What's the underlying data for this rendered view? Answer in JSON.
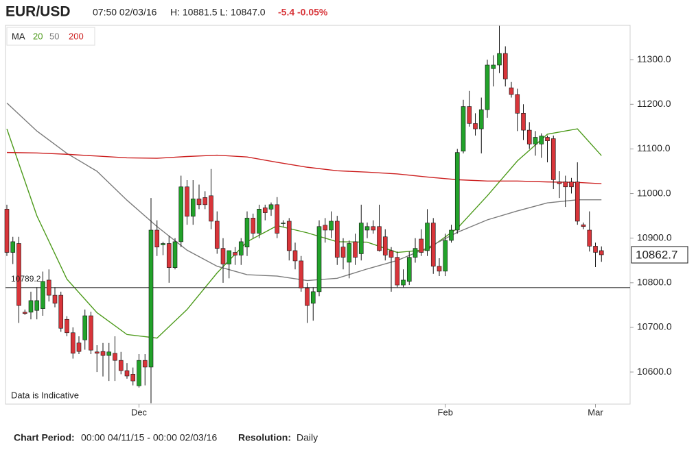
{
  "header": {
    "symbol": "EUR/USD",
    "time": "07:50 02/03/16",
    "range": "H: 10881.5 L: 10847.0",
    "change": "-5.4 -0.05%"
  },
  "chart_data": {
    "type": "candlestick",
    "legend_title": "MA",
    "legend": "top-left",
    "annotation": "Data is Indicative",
    "level": 10789.2,
    "last_price": 10862.7,
    "up_color": "#22a22a",
    "down_color": "#d8353a",
    "ylim": [
      10528,
      11377
    ],
    "yticks": [
      {
        "value": 10600,
        "label": "10600.0"
      },
      {
        "value": 10700,
        "label": "10700.0"
      },
      {
        "value": 10800,
        "label": "10800.0"
      },
      {
        "value": 10900,
        "label": "10900.0"
      },
      {
        "value": 11000,
        "label": "11000.0"
      },
      {
        "value": 11100,
        "label": "11100.0"
      },
      {
        "value": 11200,
        "label": "11200.0"
      },
      {
        "value": 11300,
        "label": "11300.0"
      }
    ],
    "categories": [
      null,
      null,
      null,
      null,
      null,
      null,
      null,
      null,
      null,
      null,
      null,
      null,
      null,
      null,
      null,
      null,
      null,
      null,
      null,
      null,
      null,
      null,
      "Dec",
      null,
      null,
      null,
      null,
      null,
      null,
      null,
      null,
      null,
      null,
      null,
      null,
      null,
      null,
      null,
      null,
      null,
      null,
      null,
      null,
      null,
      null,
      null,
      null,
      null,
      null,
      null,
      null,
      null,
      null,
      null,
      null,
      null,
      null,
      null,
      null,
      null,
      null,
      null,
      null,
      null,
      null,
      null,
      null,
      null,
      null,
      null,
      null,
      null,
      null,
      "Feb",
      null,
      null,
      null,
      null,
      null,
      null,
      null,
      null,
      null,
      null,
      null,
      null,
      null,
      null,
      null,
      null,
      null,
      null,
      null,
      null,
      null,
      null,
      null,
      null,
      "Mar",
      null
    ],
    "open": [
      10965,
      10868,
      10888,
      10734,
      10734,
      10738,
      10742,
      10806,
      10772,
      10772,
      10718,
      10688,
      10665,
      10672,
      10726,
      10645,
      10646,
      10637,
      10642,
      10626,
      10603,
      10595,
      10569,
      10626,
      10611,
      10918,
      10885,
      10888,
      10834,
      10892,
      11015,
      10949,
      10988,
      10991,
      10995,
      10938,
      10877,
      10842,
      10868,
      10862,
      10880,
      10945,
      10911,
      10968,
      10965,
      10975,
      10934,
      10938,
      10872,
      10849,
      10788,
      10754,
      10780,
      10929,
      10918,
      10938,
      10880,
      10846,
      10892,
      10865,
      10918,
      10926,
      10926,
      10903,
      10872,
      10857,
      10795,
      10803,
      10857,
      10898,
      10872,
      10934,
      10837,
      10826,
      10895,
      10918,
      11095,
      11195,
      11157,
      11145,
      11188,
      11280,
      11288,
      11314,
      11237,
      11222,
      11180,
      11142,
      11111,
      11111,
      11126,
      11123,
      11026,
      11026,
      11026,
      11026,
      10930,
      10918,
      10882,
      10872
    ],
    "high": [
      10975,
      10903,
      10903,
      10740,
      10780,
      10790,
      10825,
      10830,
      10790,
      10780,
      10725,
      10700,
      10680,
      10740,
      10735,
      10660,
      10665,
      10665,
      10680,
      10645,
      10620,
      10610,
      10640,
      10640,
      10990,
      10940,
      10892,
      10905,
      10900,
      11040,
      11030,
      11030,
      11020,
      11005,
      11055,
      10960,
      10900,
      10870,
      10880,
      10900,
      10960,
      10955,
      10975,
      10975,
      10980,
      10992,
      10940,
      10945,
      10890,
      10860,
      10800,
      10790,
      10940,
      10945,
      10960,
      10950,
      10900,
      10895,
      10910,
      10975,
      10935,
      10940,
      10975,
      10920,
      10880,
      10870,
      10830,
      10870,
      10900,
      10920,
      10965,
      10945,
      10855,
      10910,
      10930,
      11100,
      11210,
      11230,
      11180,
      11215,
      11300,
      11310,
      11376,
      11330,
      11250,
      11235,
      11200,
      11160,
      11140,
      11135,
      11130,
      11130,
      11050,
      11040,
      11035,
      11070,
      10935,
      10960,
      10890,
      10881.5
    ],
    "low": [
      10860,
      10842,
      10710,
      10728,
      10718,
      10718,
      10726,
      10758,
      10745,
      10690,
      10680,
      10630,
      10640,
      10650,
      10640,
      10600,
      10590,
      10580,
      10580,
      10595,
      10585,
      10570,
      10565,
      10570,
      10530,
      10860,
      10862,
      10800,
      10830,
      10880,
      10930,
      10930,
      10965,
      10965,
      10920,
      10865,
      10800,
      10810,
      10840,
      10840,
      10860,
      10900,
      10900,
      10940,
      10950,
      10900,
      10925,
      10850,
      10830,
      10780,
      10710,
      10715,
      10770,
      10890,
      10900,
      10840,
      10830,
      10810,
      10840,
      10850,
      10900,
      10910,
      10870,
      10850,
      10780,
      10790,
      10790,
      10795,
      10845,
      10860,
      10860,
      10820,
      10815,
      10815,
      10890,
      10910,
      11090,
      11150,
      11130,
      11090,
      11170,
      11240,
      11270,
      11240,
      11215,
      11140,
      11120,
      11100,
      11085,
      11080,
      11070,
      11010,
      10990,
      10970,
      11000,
      10930,
      10920,
      10870,
      10835,
      10847
    ],
    "close": [
      10868,
      10892,
      10749,
      10731,
      10760,
      10760,
      10803,
      10772,
      10754,
      10698,
      10688,
      10642,
      10646,
      10726,
      10649,
      10642,
      10637,
      10645,
      10626,
      10603,
      10591,
      10580,
      10626,
      10611,
      10918,
      10880,
      10888,
      10834,
      10892,
      11015,
      10949,
      10988,
      10975,
      10975,
      10938,
      10877,
      10842,
      10872,
      10862,
      10892,
      10945,
      10911,
      10965,
      10957,
      10975,
      10911,
      10934,
      10872,
      10849,
      10788,
      10749,
      10780,
      10926,
      10918,
      10938,
      10857,
      10857,
      10888,
      10857,
      10934,
      10926,
      10918,
      10872,
      10862,
      10857,
      10795,
      10806,
      10857,
      10877,
      10868,
      10934,
      10837,
      10826,
      10895,
      10918,
      11092,
      11195,
      11157,
      11145,
      11188,
      11288,
      11288,
      11314,
      11257,
      11222,
      11180,
      11142,
      11111,
      11126,
      11129,
      11118,
      11031,
      11022,
      11015,
      11015,
      10938,
      10926,
      10882,
      10868.1,
      10862.7
    ],
    "series": [
      {
        "name": "20",
        "color": "#4c9a1a",
        "x": [
          0,
          5,
          10,
          15,
          20,
          25,
          30,
          35,
          40,
          45,
          50,
          55,
          60,
          65,
          70,
          75,
          80,
          85,
          90,
          95,
          99
        ],
        "values": [
          11145,
          10950,
          10808,
          10733,
          10684,
          10676,
          10740,
          10822,
          10892,
          10928,
          10912,
          10892,
          10891,
          10868,
          10874,
          10922,
          10995,
          11073,
          11133,
          11145,
          11085
        ]
      },
      {
        "name": "50",
        "color": "#7a7a7a",
        "x": [
          0,
          5,
          10,
          15,
          20,
          25,
          30,
          35,
          40,
          45,
          50,
          55,
          60,
          65,
          70,
          75,
          80,
          85,
          90,
          95,
          99
        ],
        "values": [
          11203,
          11140,
          11090,
          11050,
          10985,
          10926,
          10873,
          10837,
          10818,
          10815,
          10805,
          10810,
          10831,
          10850,
          10878,
          10913,
          10941,
          10961,
          10979,
          10986,
          10986
        ]
      },
      {
        "name": "200",
        "color": "#cc1f1f",
        "x": [
          0,
          5,
          10,
          15,
          20,
          25,
          30,
          35,
          40,
          45,
          50,
          55,
          60,
          65,
          70,
          75,
          80,
          85,
          90,
          95,
          99
        ],
        "values": [
          11092,
          11091,
          11088,
          11084,
          11080,
          11079,
          11083,
          11086,
          11082,
          11070,
          11059,
          11051,
          11048,
          11044,
          11037,
          11031,
          11028,
          11028,
          11026,
          11025,
          11022
        ]
      }
    ]
  },
  "footer": {
    "period_label": "Chart Period:",
    "period": "00:00 04/11/15 - 00:00 02/03/16",
    "resolution_label": "Resolution:",
    "resolution": "Daily"
  }
}
